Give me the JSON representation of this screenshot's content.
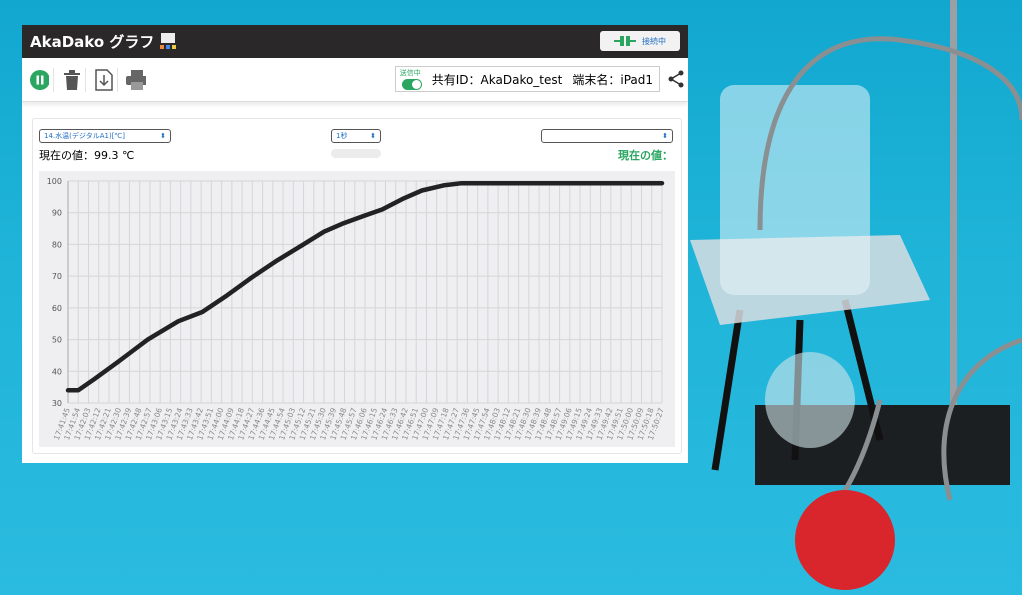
{
  "app": {
    "title": "AkaDako グラフ",
    "connection_label": "接続中"
  },
  "toolbar": {
    "icons": [
      "pause-icon",
      "trash-icon",
      "download-icon",
      "print-icon",
      "share-icon"
    ],
    "send_label": "送信中",
    "send_on": true,
    "share_id": "共有ID：AkaDako_test",
    "device_name": "端末名：iPad1"
  },
  "panel": {
    "sensor_select": "14.水温(デジタルA1)[℃]",
    "interval_select": "1秒",
    "right_select": "",
    "current_value": "現在の値：99.3 ℃",
    "right_current_value": "現在の値："
  },
  "colors": {
    "accent_green": "#2aa660",
    "topbar": "#2a2828",
    "line": "#222222"
  },
  "chart_data": {
    "type": "line",
    "ylim": [
      30,
      100
    ],
    "yticks": [
      30,
      40,
      50,
      60,
      70,
      80,
      90,
      100
    ],
    "xticks": [
      "17:41:45",
      "17:41:54",
      "17:42:03",
      "17:42:12",
      "17:42:21",
      "17:42:30",
      "17:42:39",
      "17:42:48",
      "17:42:57",
      "17:43:06",
      "17:43:15",
      "17:43:24",
      "17:43:33",
      "17:43:42",
      "17:43:51",
      "17:44:00",
      "17:44:09",
      "17:44:18",
      "17:44:27",
      "17:44:36",
      "17:44:45",
      "17:44:54",
      "17:45:03",
      "17:45:12",
      "17:45:21",
      "17:45:30",
      "17:45:39",
      "17:45:48",
      "17:45:57",
      "17:46:06",
      "17:46:15",
      "17:46:24",
      "17:46:33",
      "17:46:42",
      "17:46:51",
      "17:47:00",
      "17:47:09",
      "17:47:18",
      "17:47:27",
      "17:47:36",
      "17:47:45",
      "17:47:54",
      "17:48:03",
      "17:48:12",
      "17:48:21",
      "17:48:30",
      "17:48:39",
      "17:48:48",
      "17:48:57",
      "17:49:06",
      "17:49:15",
      "17:49:24",
      "17:49:33",
      "17:49:42",
      "17:49:51",
      "17:50:00",
      "17:50:09",
      "17:50:18",
      "17:50:27"
    ],
    "x": [
      "17:41:45",
      "17:41:54",
      "17:42:08",
      "17:42:29",
      "17:42:55",
      "17:43:22",
      "17:43:43",
      "17:44:05",
      "17:44:27",
      "17:44:49",
      "17:45:11",
      "17:45:30",
      "17:45:46",
      "17:46:05",
      "17:46:21",
      "17:46:40",
      "17:46:56",
      "17:47:15",
      "17:47:31",
      "17:47:50",
      "17:48:30",
      "17:49:30",
      "17:50:27"
    ],
    "y": [
      34,
      34,
      37.5,
      43,
      50,
      55.8,
      58.7,
      64,
      69.7,
      75,
      79.8,
      84,
      86.5,
      89,
      91,
      94.5,
      97,
      98.6,
      99.3,
      99.3,
      99.3,
      99.3,
      99.3
    ]
  }
}
